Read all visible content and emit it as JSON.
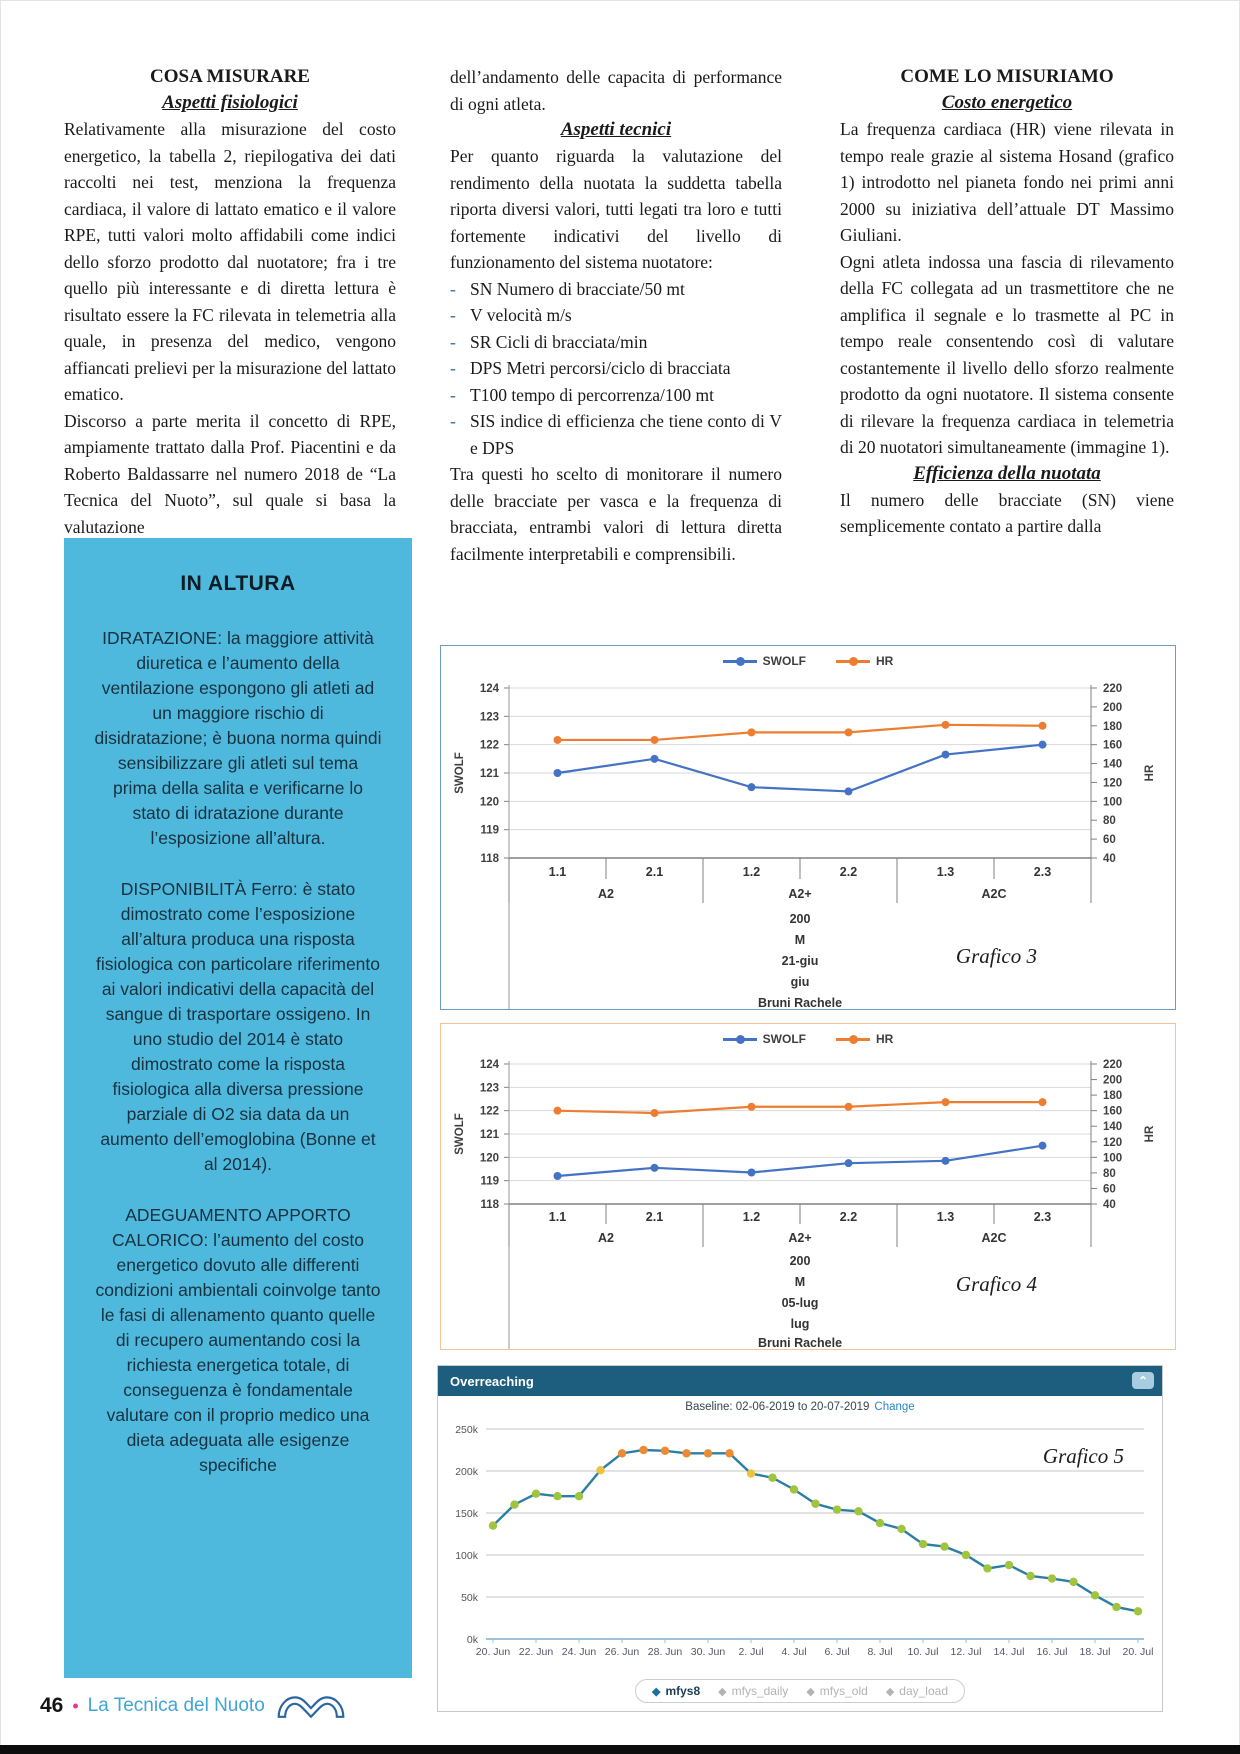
{
  "columns": {
    "col1": {
      "heading": "COSA MISURARE",
      "subheading": "Aspetti fisiologici",
      "para1": "Relativamente alla misurazione del costo energetico, la tabella 2, riepilogativa dei dati raccolti nei test, menziona la frequenza cardiaca, il valore di lattato ematico e il valore RPE, tutti valori molto affidabili come indici dello sforzo prodotto dal nuotatore; fra i tre quello più interessante e di diretta lettura è risultato essere la FC rilevata in telemetria alla quale, in presenza del medico, vengono affiancati prelievi per la misurazione del lattato ematico.",
      "para2": "Discorso a parte merita il concetto di RPE, ampiamente trattato dalla Prof. Piacentini e da Roberto Baldassarre nel numero 2018 de “La Tecnica del Nuoto”, sul quale si basa la valutazione"
    },
    "col2": {
      "para0": "dell’andamento delle capacita di performance di ogni atleta.",
      "heading": "Aspetti tecnici",
      "para1": "Per quanto riguarda la valutazione del rendimento della nuotata la suddetta tabella riporta diversi valori, tutti legati tra loro e tutti fortemente indicativi del livello di funzionamento del sistema nuotatore:",
      "bullet": "-",
      "list": [
        "SN Numero di bracciate/50 mt",
        "V velocità m/s",
        "SR Cicli di bracciata/min",
        "DPS Metri percorsi/ciclo di bracciata",
        "T100 tempo di percorrenza/100 mt",
        "SIS indice di efficienza che tiene conto di V e DPS"
      ],
      "para2": "Tra questi ho scelto di monitorare il numero delle bracciate per vasca e la frequenza di bracciata, entrambi valori di lettura diretta facilmente interpretabili e comprensibili."
    },
    "col3": {
      "heading": "COME LO MISURIAMO",
      "subheading": "Costo energetico",
      "para1": "La frequenza cardiaca (HR) viene rilevata in tempo reale grazie al sistema Hosand (grafico 1) introdotto nel pianeta fondo nei primi anni 2000 su iniziativa dell’attuale DT Massimo Giuliani.",
      "para2": "Ogni atleta indossa una fascia di rilevamento della FC collegata ad un trasmettitore che ne amplifica il segnale e lo trasmette al PC in tempo reale consentendo così di valutare costantemente il livello dello sforzo realmente prodotto da ogni nuotatore. Il sistema consente di rilevare la frequenza cardiaca in telemetria di 20 nuotatori simultaneamente (immagine 1).",
      "subheading2": "Efficienza della nuotata",
      "para3": "Il numero delle bracciate (SN) viene semplicemente contato a partire dalla"
    }
  },
  "sidebar_box": {
    "title": "IN ALTURA",
    "bg_color": "#4fb9dd",
    "paragraphs": [
      "IDRATAZIONE: la maggiore attività diuretica e l’aumento della ventilazione espongono gli atleti ad un maggiore rischio di disidratazione; è buona norma quindi sensibilizzare gli atleti sul tema prima della salita e verificarne lo stato di idratazione durante l’esposizione all’altura.",
      "DISPONIBILITÀ Ferro: è stato dimostrato come l’esposizione all’altura produca una risposta fisiologica con particolare riferimento ai valori indicativi della capacità del sangue di trasportare ossigeno. In uno studio del 2014 è stato dimostrato come la risposta fisiologica alla diversa pressione parziale di O2 sia data da un aumento dell’emoglobina (Bonne et al 2014).",
      "ADEGUAMENTO APPORTO CALORICO: l’aumento del costo energetico dovuto alle differenti condizioni ambientali coinvolge tanto le fasi di allenamento quanto quelle di recupero aumentando cosi la richiesta energetica totale, di conseguenza è fondamentale valutare con il proprio medico una dieta adeguata alle esigenze specifiche"
    ]
  },
  "chart_data": [
    {
      "id": "grafico3",
      "type": "line",
      "legend": [
        "SWOLF",
        "HR"
      ],
      "categories": [
        "1.1",
        "2.1",
        "1.2",
        "2.2",
        "1.3",
        "2.3"
      ],
      "group_labels": [
        "A2",
        "A2+",
        "A2C"
      ],
      "footer_labels": [
        "200",
        "M",
        "21-giu",
        "giu",
        "Bruni Rachele"
      ],
      "ylabel": "SWOLF",
      "y2label": "HR",
      "ylim": [
        118,
        124
      ],
      "yticks": [
        124,
        123,
        122,
        121,
        120,
        119,
        118
      ],
      "y2lim": [
        40,
        220
      ],
      "y2ticks": [
        220,
        200,
        180,
        160,
        140,
        120,
        100,
        80,
        60,
        40
      ],
      "series": [
        {
          "name": "SWOLF",
          "axis": "left",
          "color": "#4472c4",
          "values": [
            121.0,
            121.5,
            120.5,
            120.35,
            121.65,
            122.0
          ]
        },
        {
          "name": "HR",
          "axis": "right",
          "color": "#ed7d31",
          "values": [
            165,
            165,
            173,
            173,
            181,
            180
          ]
        }
      ],
      "caption": "Grafico 3"
    },
    {
      "id": "grafico4",
      "type": "line",
      "legend": [
        "SWOLF",
        "HR"
      ],
      "categories": [
        "1.1",
        "2.1",
        "1.2",
        "2.2",
        "1.3",
        "2.3"
      ],
      "group_labels": [
        "A2",
        "A2+",
        "A2C"
      ],
      "footer_labels": [
        "200",
        "M",
        "05-lug",
        "lug",
        "Bruni Rachele"
      ],
      "ylabel": "SWOLF",
      "y2label": "HR",
      "ylim": [
        118,
        124
      ],
      "yticks": [
        124,
        123,
        122,
        121,
        120,
        119,
        118
      ],
      "y2lim": [
        40,
        220
      ],
      "y2ticks": [
        220,
        200,
        180,
        160,
        140,
        120,
        100,
        80,
        60,
        40
      ],
      "series": [
        {
          "name": "SWOLF",
          "axis": "left",
          "color": "#4472c4",
          "values": [
            119.2,
            119.55,
            119.35,
            119.75,
            119.85,
            120.5
          ]
        },
        {
          "name": "HR",
          "axis": "right",
          "color": "#ed7d31",
          "values": [
            160,
            157,
            165,
            165,
            171,
            171
          ]
        }
      ],
      "caption": "Grafico 4"
    },
    {
      "id": "grafico5",
      "type": "line",
      "title": "Overreaching",
      "baseline_label": "Baseline: 02-06-2019 to 20-07-2019",
      "change_label": "Change",
      "ylabel_ticks": [
        "250k",
        "200k",
        "150k",
        "100k",
        "50k",
        "0k"
      ],
      "ylim_thousands": [
        0,
        250
      ],
      "x_tick_labels": [
        "20. Jun",
        "22. Jun",
        "24. Jun",
        "26. Jun",
        "28. Jun",
        "30. Jun",
        "2. Jul",
        "4. Jul",
        "6. Jul",
        "8. Jul",
        "10. Jul",
        "12. Jul",
        "14. Jul",
        "16. Jul",
        "18. Jul",
        "20. Jul"
      ],
      "values_thousands": [
        135,
        160,
        173,
        170,
        170,
        201,
        221,
        225,
        224,
        221,
        221,
        221,
        197,
        192,
        178,
        161,
        154,
        152,
        138,
        131,
        113,
        110,
        100,
        84,
        88,
        75,
        72,
        68,
        52,
        38,
        33
      ],
      "line_color": "#2d7ea6",
      "point_colors": {
        "high": "#ed8b33",
        "mid": "#eec33b",
        "low": "#a0c43d"
      },
      "point_thresholds": {
        "high": 215,
        "mid": 195
      },
      "legend_items": [
        {
          "label": "mfys8",
          "active": true
        },
        {
          "label": "mfys_daily",
          "active": false
        },
        {
          "label": "mfys_old",
          "active": false
        },
        {
          "label": "day_load",
          "active": false
        }
      ],
      "caption": "Grafico 5"
    }
  ],
  "footer": {
    "page_number": "46",
    "separator": "•",
    "magazine": "La Tecnica del Nuoto"
  }
}
